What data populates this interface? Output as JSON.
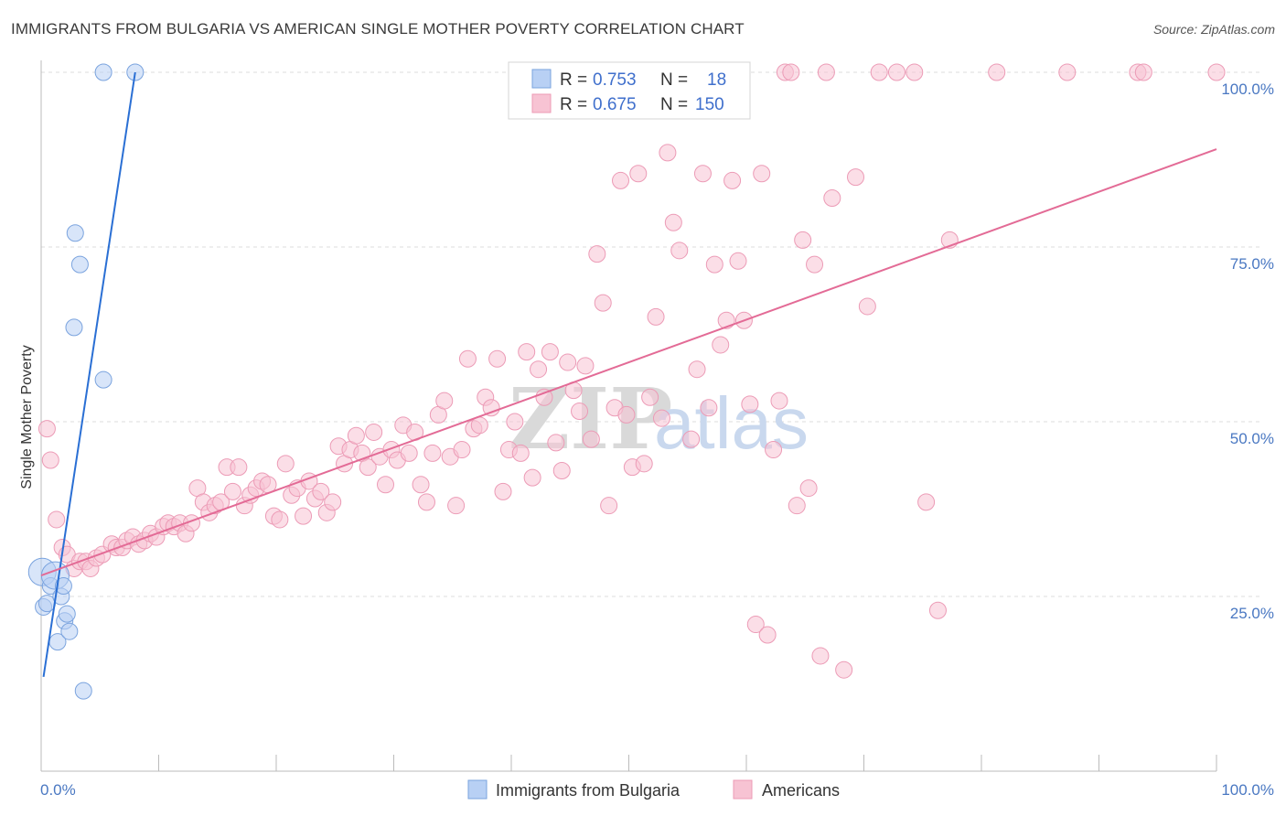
{
  "title": "IMMIGRANTS FROM BULGARIA VS AMERICAN SINGLE MOTHER POVERTY CORRELATION CHART",
  "source": "Source: ZipAtlas.com",
  "watermark": {
    "part1": "ZIP",
    "part2": "atlas"
  },
  "colors": {
    "blue_fill": "#b8d0f4",
    "blue_stroke": "#7aa3de",
    "blue_line": "#2a6fd4",
    "pink_fill": "#f7c3d3",
    "pink_stroke": "#ec9bb6",
    "pink_line": "#e36b96",
    "tick_text": "#4a78c2",
    "grid": "#dcdcdc"
  },
  "legend": {
    "rows": [
      {
        "r_label": "R =",
        "r_value": "0.753",
        "n_label": "N =",
        "n_value": "18"
      },
      {
        "r_label": "R =",
        "r_value": "0.675",
        "n_label": "N =",
        "n_value": "150"
      }
    ]
  },
  "chart_data": {
    "type": "scatter",
    "xlabel": "",
    "ylabel": "Single Mother Poverty",
    "xlim": [
      0,
      100
    ],
    "ylim": [
      0,
      100
    ],
    "x_tick_labels": [
      "0.0%",
      "100.0%"
    ],
    "y_tick_labels": [
      "25.0%",
      "50.0%",
      "75.0%",
      "100.0%"
    ],
    "y_ticks": [
      25,
      50,
      75,
      100
    ],
    "legend_position": "bottom",
    "series": [
      {
        "name": "Immigrants from Bulgaria",
        "color": "#b8d0f4",
        "trend": [
          [
            0.2,
            13.5
          ],
          [
            8.0,
            100.0
          ]
        ],
        "points": [
          [
            0.1,
            28.5
          ],
          [
            0.2,
            23.5
          ],
          [
            0.5,
            24.0
          ],
          [
            0.8,
            26.5
          ],
          [
            1.2,
            28.0
          ],
          [
            1.4,
            18.5
          ],
          [
            1.7,
            25.0
          ],
          [
            1.9,
            26.5
          ],
          [
            2.0,
            21.5
          ],
          [
            2.2,
            22.5
          ],
          [
            2.4,
            20.0
          ],
          [
            2.8,
            63.5
          ],
          [
            2.9,
            77.0
          ],
          [
            3.3,
            72.5
          ],
          [
            3.6,
            11.5
          ],
          [
            5.3,
            56.0
          ],
          [
            5.3,
            100.0
          ],
          [
            8.0,
            100.0
          ]
        ]
      },
      {
        "name": "Americans",
        "color": "#f7c3d3",
        "trend": [
          [
            0.0,
            28.0
          ],
          [
            100.0,
            89.0
          ]
        ],
        "points": [
          [
            0.5,
            49.0
          ],
          [
            0.8,
            44.5
          ],
          [
            1.3,
            36.0
          ],
          [
            1.8,
            32.0
          ],
          [
            2.2,
            31.0
          ],
          [
            2.8,
            29.0
          ],
          [
            3.3,
            30.0
          ],
          [
            3.8,
            30.0
          ],
          [
            4.2,
            29.0
          ],
          [
            4.7,
            30.5
          ],
          [
            5.2,
            31.0
          ],
          [
            6.0,
            32.5
          ],
          [
            6.4,
            32.0
          ],
          [
            6.9,
            32.0
          ],
          [
            7.3,
            33.0
          ],
          [
            7.8,
            33.5
          ],
          [
            8.3,
            32.5
          ],
          [
            8.8,
            33.0
          ],
          [
            9.3,
            34.0
          ],
          [
            9.8,
            33.5
          ],
          [
            10.4,
            35.0
          ],
          [
            10.8,
            35.5
          ],
          [
            11.3,
            35.0
          ],
          [
            11.8,
            35.5
          ],
          [
            12.3,
            34.0
          ],
          [
            12.8,
            35.5
          ],
          [
            13.3,
            40.5
          ],
          [
            13.8,
            38.5
          ],
          [
            14.3,
            37.0
          ],
          [
            14.8,
            38.0
          ],
          [
            15.3,
            38.5
          ],
          [
            15.8,
            43.5
          ],
          [
            16.3,
            40.0
          ],
          [
            16.8,
            43.5
          ],
          [
            17.3,
            38.0
          ],
          [
            17.8,
            39.5
          ],
          [
            18.3,
            40.5
          ],
          [
            18.8,
            41.5
          ],
          [
            19.3,
            41.0
          ],
          [
            19.8,
            36.5
          ],
          [
            20.3,
            36.0
          ],
          [
            20.8,
            44.0
          ],
          [
            21.3,
            39.5
          ],
          [
            21.8,
            40.5
          ],
          [
            22.3,
            36.5
          ],
          [
            22.8,
            41.5
          ],
          [
            23.3,
            39.0
          ],
          [
            23.8,
            40.0
          ],
          [
            24.3,
            37.0
          ],
          [
            24.8,
            38.5
          ],
          [
            25.3,
            46.5
          ],
          [
            25.8,
            44.0
          ],
          [
            26.3,
            46.0
          ],
          [
            26.8,
            48.0
          ],
          [
            27.3,
            45.5
          ],
          [
            27.8,
            43.5
          ],
          [
            28.3,
            48.5
          ],
          [
            28.8,
            45.0
          ],
          [
            29.3,
            41.0
          ],
          [
            29.8,
            46.0
          ],
          [
            30.3,
            44.5
          ],
          [
            30.8,
            49.5
          ],
          [
            31.3,
            45.5
          ],
          [
            31.8,
            48.5
          ],
          [
            32.3,
            41.0
          ],
          [
            32.8,
            38.5
          ],
          [
            33.3,
            45.5
          ],
          [
            33.8,
            51.0
          ],
          [
            34.3,
            53.0
          ],
          [
            34.8,
            45.0
          ],
          [
            35.3,
            38.0
          ],
          [
            35.8,
            46.0
          ],
          [
            36.3,
            59.0
          ],
          [
            36.8,
            49.0
          ],
          [
            37.3,
            49.5
          ],
          [
            37.8,
            53.5
          ],
          [
            38.3,
            52.0
          ],
          [
            38.8,
            59.0
          ],
          [
            39.3,
            40.0
          ],
          [
            39.8,
            46.0
          ],
          [
            40.3,
            50.0
          ],
          [
            40.8,
            45.5
          ],
          [
            41.3,
            60.0
          ],
          [
            41.8,
            42.0
          ],
          [
            42.3,
            57.5
          ],
          [
            42.8,
            53.5
          ],
          [
            43.3,
            60.0
          ],
          [
            43.8,
            47.0
          ],
          [
            44.3,
            43.0
          ],
          [
            44.8,
            58.5
          ],
          [
            45.3,
            54.5
          ],
          [
            45.8,
            51.5
          ],
          [
            46.3,
            58.0
          ],
          [
            46.8,
            47.5
          ],
          [
            47.3,
            74.0
          ],
          [
            47.8,
            67.0
          ],
          [
            48.3,
            38.0
          ],
          [
            48.8,
            52.0
          ],
          [
            49.3,
            84.5
          ],
          [
            49.8,
            51.0
          ],
          [
            50.3,
            43.5
          ],
          [
            50.8,
            85.5
          ],
          [
            51.3,
            44.0
          ],
          [
            51.8,
            53.5
          ],
          [
            52.3,
            65.0
          ],
          [
            52.8,
            50.5
          ],
          [
            53.3,
            88.5
          ],
          [
            53.8,
            78.5
          ],
          [
            54.3,
            74.5
          ],
          [
            54.8,
            100.0
          ],
          [
            55.3,
            47.5
          ],
          [
            55.8,
            57.5
          ],
          [
            56.3,
            85.5
          ],
          [
            56.8,
            52.0
          ],
          [
            57.3,
            72.5
          ],
          [
            57.8,
            61.0
          ],
          [
            58.3,
            64.5
          ],
          [
            58.8,
            84.5
          ],
          [
            59.3,
            73.0
          ],
          [
            59.8,
            64.5
          ],
          [
            60.3,
            52.5
          ],
          [
            60.8,
            21.0
          ],
          [
            61.3,
            85.5
          ],
          [
            61.8,
            19.5
          ],
          [
            62.3,
            46.0
          ],
          [
            62.8,
            53.0
          ],
          [
            63.3,
            100.0
          ],
          [
            63.8,
            100.0
          ],
          [
            64.3,
            38.0
          ],
          [
            64.8,
            76.0
          ],
          [
            65.3,
            40.5
          ],
          [
            65.8,
            72.5
          ],
          [
            66.3,
            16.5
          ],
          [
            66.8,
            100.0
          ],
          [
            67.3,
            82.0
          ],
          [
            68.3,
            14.5
          ],
          [
            69.3,
            85.0
          ],
          [
            70.3,
            66.5
          ],
          [
            71.3,
            100.0
          ],
          [
            72.8,
            100.0
          ],
          [
            74.3,
            100.0
          ],
          [
            75.3,
            38.5
          ],
          [
            76.3,
            23.0
          ],
          [
            77.3,
            76.0
          ],
          [
            81.3,
            100.0
          ],
          [
            87.3,
            100.0
          ],
          [
            93.3,
            100.0
          ],
          [
            93.8,
            100.0
          ],
          [
            100.0,
            100.0
          ]
        ]
      }
    ]
  }
}
